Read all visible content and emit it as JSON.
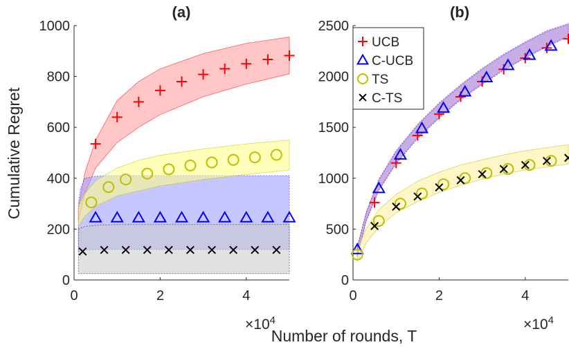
{
  "shared": {
    "ylabel": "Cumulative Regret",
    "xlabel": "Number of rounds, T",
    "x_multiplier": "×10",
    "x_multiplier_exp": "4"
  },
  "legend": {
    "items": [
      {
        "label": "UCB",
        "marker": "plus",
        "color": "#ff0000"
      },
      {
        "label": "C-UCB",
        "marker": "triangle",
        "color": "#0000ff"
      },
      {
        "label": "TS",
        "marker": "circle",
        "color": "#bfbf00"
      },
      {
        "label": "C-TS",
        "marker": "cross",
        "color": "#000000"
      }
    ]
  },
  "chart_data": [
    {
      "type": "scatter",
      "title": "(a)",
      "xlim": [
        0,
        50000
      ],
      "ylim": [
        0,
        1000
      ],
      "xticks": [
        "0",
        "2",
        "4"
      ],
      "yticks": [
        "0",
        "200",
        "400",
        "600",
        "800",
        "1000"
      ],
      "series": [
        {
          "name": "UCB",
          "marker": "plus",
          "color": "#ff0000",
          "band_color": "#ff9999",
          "x": [
            5000,
            10000,
            15000,
            20000,
            25000,
            30000,
            35000,
            40000,
            45000,
            50000
          ],
          "y": [
            535,
            640,
            700,
            745,
            780,
            808,
            830,
            850,
            867,
            882
          ],
          "band": {
            "x": [
              1000,
              2500,
              5000,
              10000,
              15000,
              20000,
              30000,
              40000,
              50000
            ],
            "lower": [
              230,
              340,
              440,
              540,
              600,
              650,
              720,
              770,
              810
            ],
            "upper": [
              280,
              420,
              550,
              705,
              780,
              830,
              890,
              930,
              955
            ]
          }
        },
        {
          "name": "C-UCB",
          "marker": "triangle",
          "color": "#0000ff",
          "band_color": "#9999ff",
          "x": [
            5000,
            10000,
            15000,
            20000,
            25000,
            30000,
            35000,
            40000,
            45000,
            50000
          ],
          "y": [
            245,
            245,
            245,
            245,
            245,
            245,
            245,
            245,
            245,
            245
          ],
          "band": {
            "x": [
              1000,
              1500,
              2500,
              5000,
              10000,
              20000,
              30000,
              40000,
              50000
            ],
            "lower": [
              110,
              115,
              118,
              120,
              120,
              120,
              120,
              120,
              120
            ],
            "upper": [
              300,
              360,
              400,
              408,
              410,
              410,
              410,
              410,
              410
            ]
          }
        },
        {
          "name": "TS",
          "marker": "circle",
          "color": "#bfbf00",
          "band_color": "#ffff80",
          "x": [
            4000,
            8000,
            12000,
            17000,
            22000,
            27000,
            32000,
            37000,
            42000,
            47000
          ],
          "y": [
            305,
            365,
            395,
            418,
            435,
            450,
            462,
            472,
            482,
            492
          ],
          "band": {
            "x": [
              1000,
              2500,
              5000,
              10000,
              15000,
              20000,
              30000,
              40000,
              50000
            ],
            "lower": [
              210,
              250,
              290,
              330,
              350,
              370,
              395,
              415,
              432
            ],
            "upper": [
              290,
              340,
              390,
              440,
              470,
              490,
              515,
              535,
              550
            ]
          }
        },
        {
          "name": "C-TS",
          "marker": "cross",
          "color": "#000000",
          "band_color": "#c8c8c8",
          "x": [
            2000,
            7000,
            12000,
            17000,
            22000,
            27000,
            32000,
            37000,
            42000,
            47000
          ],
          "y": [
            112,
            118,
            118,
            118,
            118,
            118,
            118,
            118,
            118,
            118
          ],
          "band": {
            "x": [
              1000,
              2500,
              5000,
              10000,
              20000,
              30000,
              40000,
              50000
            ],
            "lower": [
              25,
              25,
              25,
              25,
              25,
              25,
              25,
              25
            ],
            "upper": [
              200,
              210,
              215,
              218,
              218,
              218,
              218,
              218
            ]
          }
        }
      ]
    },
    {
      "type": "scatter",
      "title": "(b)",
      "xlim": [
        0,
        50000
      ],
      "ylim": [
        0,
        2500
      ],
      "xticks": [
        "0",
        "2",
        "4"
      ],
      "yticks": [
        "0",
        "500",
        "1000",
        "1500",
        "2000",
        "2500"
      ],
      "series": [
        {
          "name": "UCB",
          "marker": "plus",
          "color": "#ff0000",
          "band_color": "#ff9999",
          "x": [
            5000,
            10000,
            15000,
            20000,
            25000,
            30000,
            35000,
            40000,
            45000,
            50000
          ],
          "y": [
            760,
            1150,
            1420,
            1630,
            1800,
            1950,
            2070,
            2180,
            2280,
            2370
          ],
          "band": {
            "x": [
              1000,
              3000,
              6000,
              10000,
              15000,
              20000,
              25000,
              30000,
              35000,
              40000,
              45000,
              50000
            ],
            "lower": [
              230,
              580,
              890,
              1150,
              1400,
              1600,
              1780,
              1930,
              2070,
              2190,
              2300,
              2400
            ],
            "upper": [
              320,
              650,
              980,
              1260,
              1520,
              1730,
              1910,
              2070,
              2210,
              2330,
              2440,
              2510
            ]
          }
        },
        {
          "name": "C-UCB",
          "marker": "triangle",
          "color": "#0000ff",
          "band_color": "#9999ff",
          "x": [
            1000,
            6000,
            11000,
            16000,
            21000,
            26000,
            31000,
            36000,
            41000,
            46000
          ],
          "y": [
            300,
            900,
            1230,
            1490,
            1690,
            1850,
            1990,
            2110,
            2210,
            2300
          ],
          "band": {
            "x": [
              1000,
              3000,
              6000,
              10000,
              15000,
              20000,
              25000,
              30000,
              35000,
              40000,
              45000,
              50000
            ],
            "lower": [
              225,
              570,
              880,
              1140,
              1390,
              1590,
              1770,
              1920,
              2060,
              2180,
              2290,
              2390
            ],
            "upper": [
              325,
              660,
              990,
              1270,
              1530,
              1740,
              1920,
              2080,
              2220,
              2340,
              2450,
              2520
            ]
          }
        },
        {
          "name": "TS",
          "marker": "circle",
          "color": "#bfbf00",
          "band_color": "#ffef99",
          "x": [
            1000,
            6000,
            11000,
            16000,
            21000,
            26000,
            31000,
            36000,
            41000,
            46000
          ],
          "y": [
            250,
            580,
            750,
            850,
            940,
            1000,
            1050,
            1090,
            1130,
            1170
          ],
          "band": {
            "x": [
              1000,
              3000,
              6000,
              10000,
              15000,
              20000,
              25000,
              30000,
              35000,
              40000,
              45000,
              50000
            ],
            "lower": [
              180,
              360,
              520,
              660,
              770,
              860,
              930,
              990,
              1040,
              1080,
              1110,
              1140
            ],
            "upper": [
              300,
              500,
              690,
              840,
              970,
              1060,
              1130,
              1180,
              1230,
              1270,
              1300,
              1330
            ]
          }
        },
        {
          "name": "C-TS",
          "marker": "cross",
          "color": "#000000",
          "band_color": "#ffef99",
          "x": [
            5000,
            10000,
            15000,
            20000,
            25000,
            30000,
            35000,
            40000,
            45000,
            50000
          ],
          "y": [
            530,
            720,
            820,
            910,
            980,
            1040,
            1090,
            1130,
            1170,
            1200
          ],
          "band": {
            "x": [
              1000,
              50000
            ],
            "lower": [
              0,
              0
            ],
            "upper": [
              0,
              0
            ]
          }
        }
      ]
    }
  ]
}
